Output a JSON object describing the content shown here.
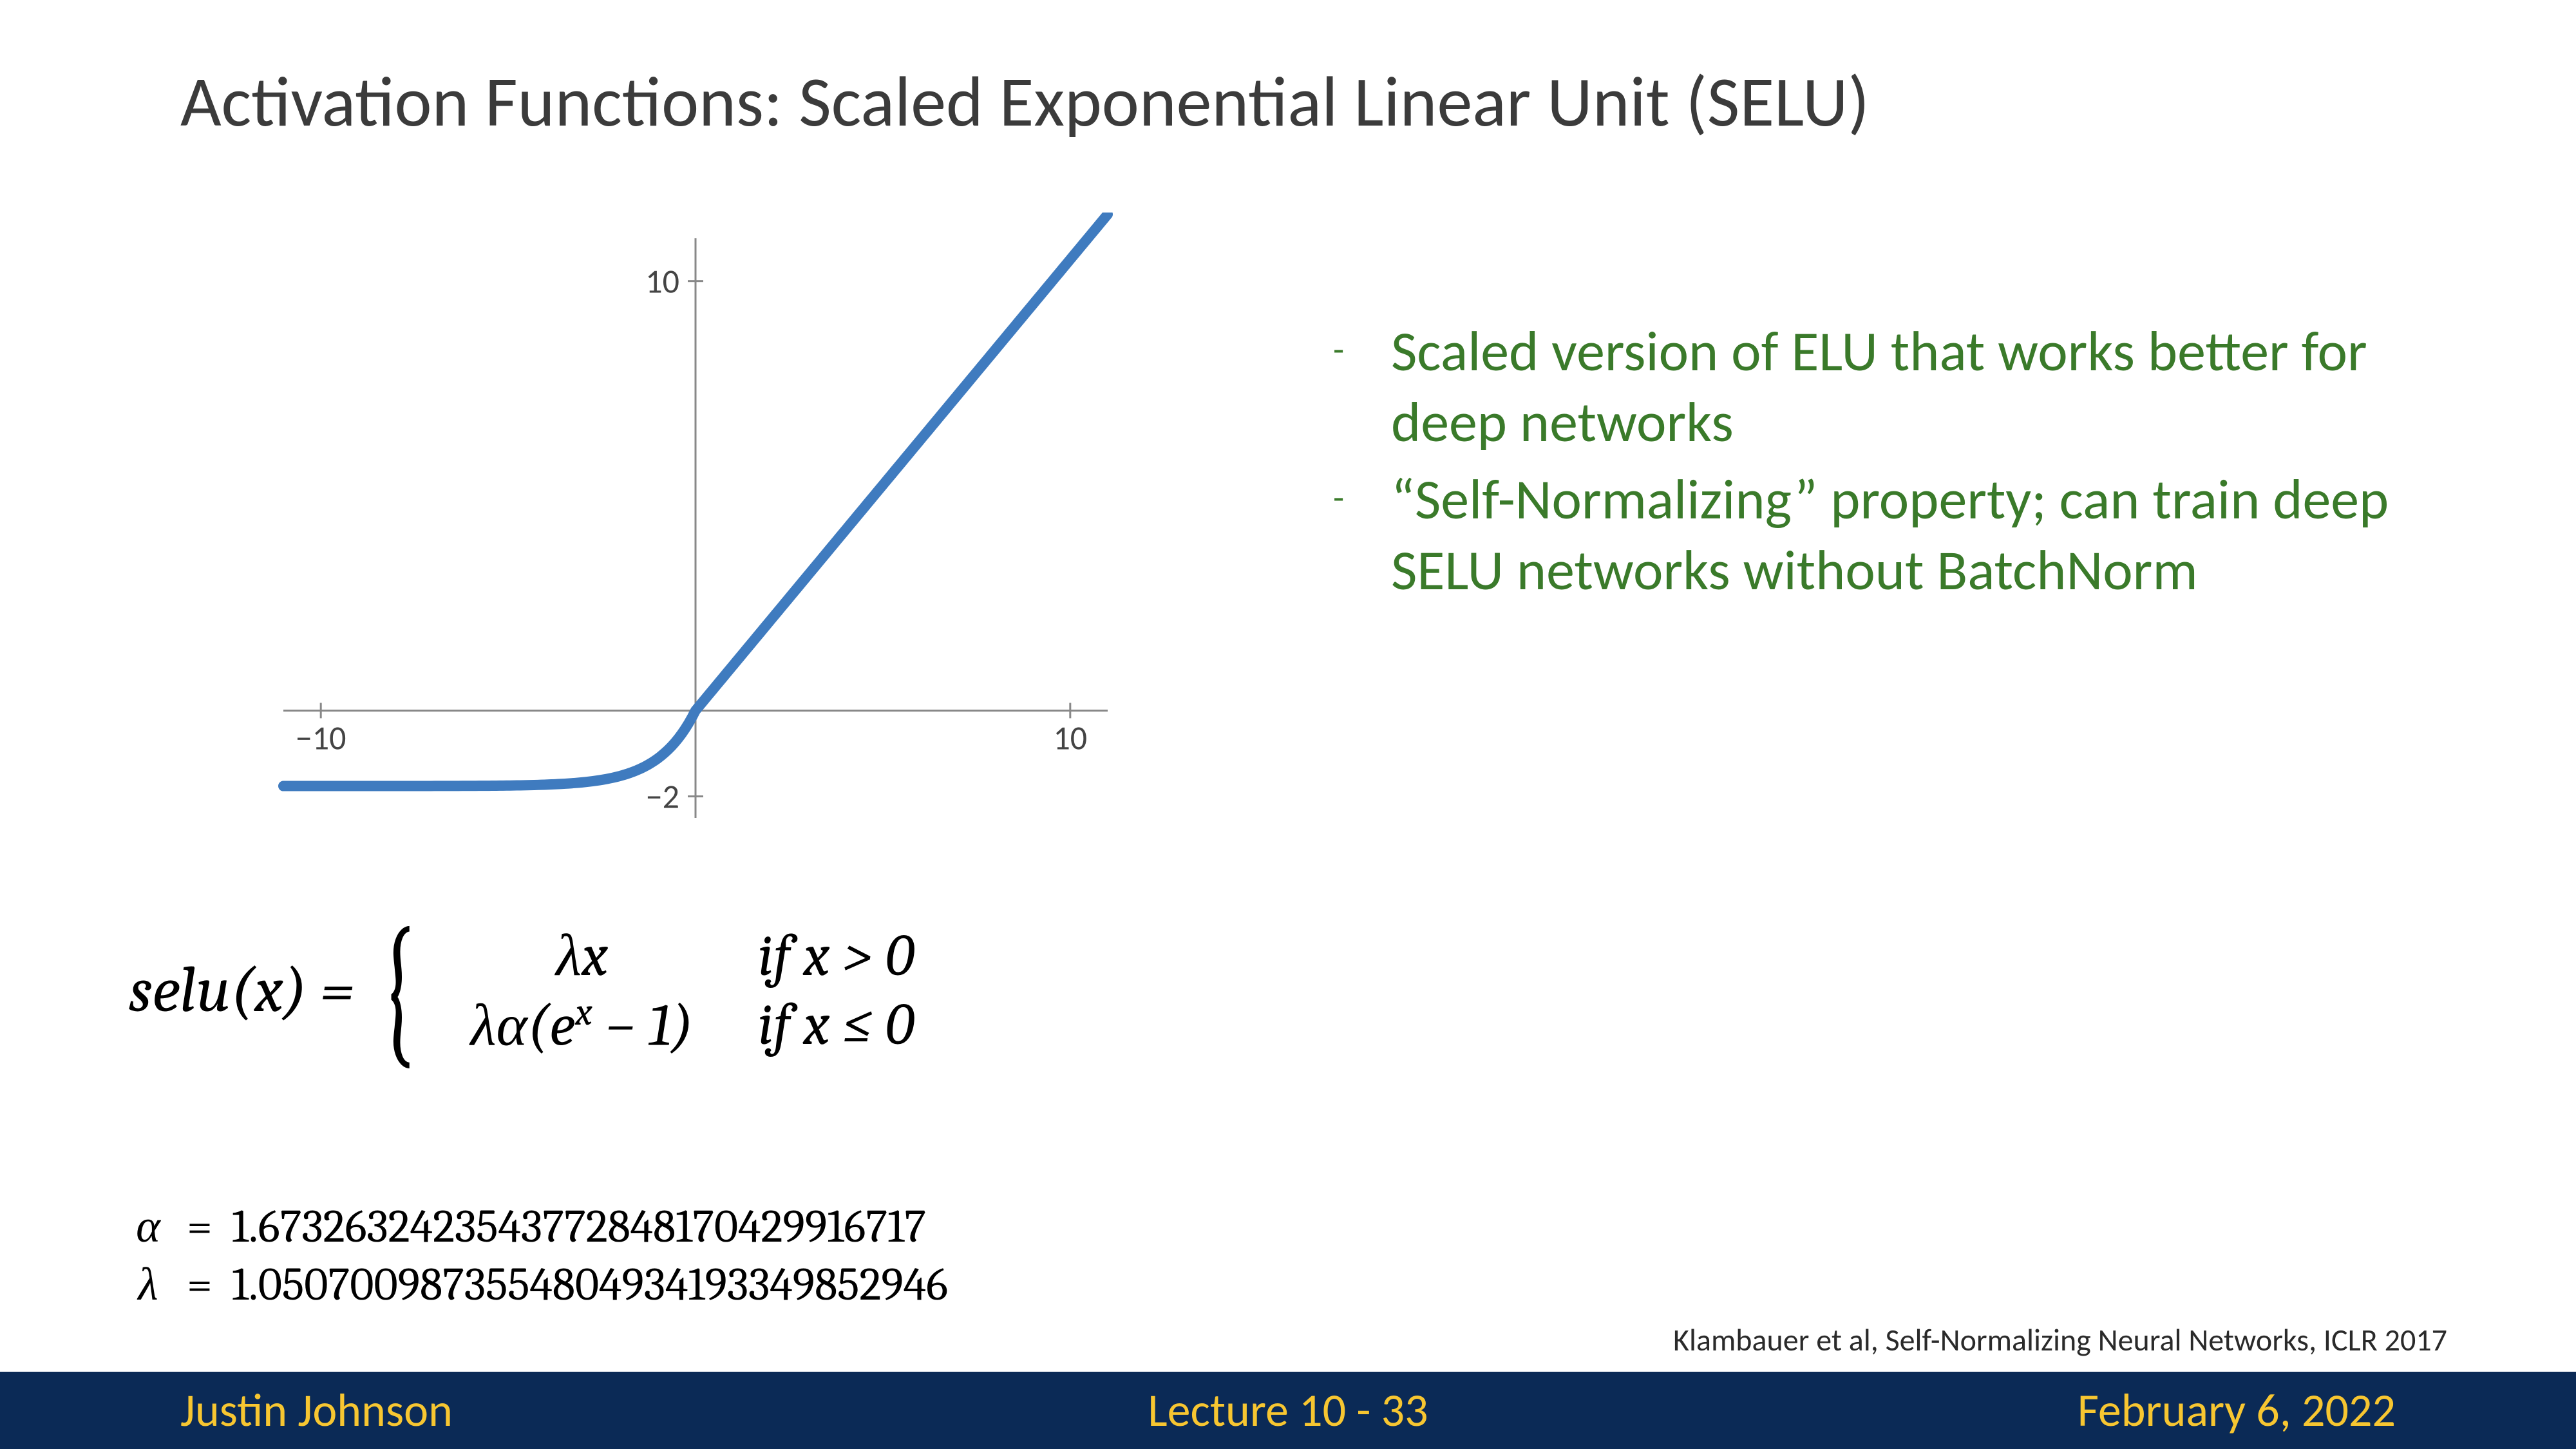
{
  "title": "Activation Functions: Scaled Exponential Linear Unit (SELU)",
  "chart": {
    "type": "line",
    "xlim": [
      -11,
      11
    ],
    "ylim": [
      -2.5,
      11
    ],
    "xtick_labels": [
      -10,
      10
    ],
    "ytick_labels": [
      -2,
      10
    ],
    "line_color": "#3f7bbf",
    "line_width": 16,
    "axis_color": "#888888",
    "tick_color": "#888888",
    "tick_fontsize": 52,
    "background_color": "#ffffff",
    "lambda": 1.0507,
    "alpha": 1.6733
  },
  "bullets": {
    "items": [
      "Scaled version of ELU that works better for deep networks",
      "“Self-Normalizing” property; can train deep SELU networks without BatchNorm"
    ],
    "color": "#3a7a2a",
    "fontsize": 88
  },
  "formula": {
    "lhs": "selu(x) =",
    "case1_expr": "λx",
    "case1_cond": "if x > 0",
    "case2_expr": "λα(eˣ − 1)",
    "case2_cond": "if x ≤ 0"
  },
  "constants": {
    "alpha_sym": "α",
    "alpha_val": "1.6732632423543772848170429916717",
    "lambda_sym": "λ",
    "lambda_val": "1.0507009873554804934193349852946"
  },
  "citation": "Klambauer et al, Self-Normalizing Neural Networks, ICLR 2017",
  "footer": {
    "author": "Justin Johnson",
    "lecture": "Lecture 10 - 33",
    "date": "February 6, 2022",
    "bg_color": "#0b2a56",
    "text_color": "#f7c631"
  }
}
